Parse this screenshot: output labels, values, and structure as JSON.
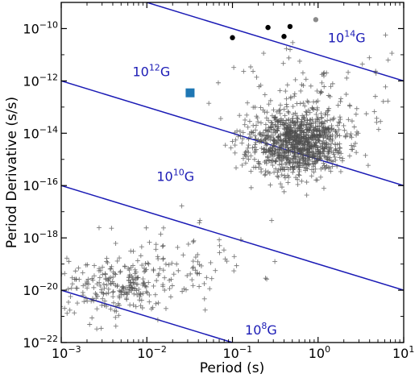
{
  "chart_data": {
    "type": "scatter",
    "xlabel": "Period (s)",
    "ylabel": "Period Derivative (s/s)",
    "xscale": "log",
    "yscale": "log",
    "xlim": [
      0.001,
      10
    ],
    "ylim": [
      1e-22,
      1e-09
    ],
    "grid": false,
    "legend": "none",
    "x_ticks": [
      {
        "value": 0.001,
        "base": "10",
        "exp": "−3"
      },
      {
        "value": 0.01,
        "base": "10",
        "exp": "−2"
      },
      {
        "value": 0.1,
        "base": "10",
        "exp": "−1"
      },
      {
        "value": 1,
        "base": "10",
        "exp": "0"
      },
      {
        "value": 10,
        "base": "10",
        "exp": "1"
      }
    ],
    "y_ticks": [
      {
        "value": 1e-22,
        "base": "10",
        "exp": "−22"
      },
      {
        "value": 1e-20,
        "base": "10",
        "exp": "−20"
      },
      {
        "value": 1e-18,
        "base": "10",
        "exp": "−18"
      },
      {
        "value": 1e-16,
        "base": "10",
        "exp": "−16"
      },
      {
        "value": 1e-14,
        "base": "10",
        "exp": "−14"
      },
      {
        "value": 1e-12,
        "base": "10",
        "exp": "−12"
      },
      {
        "value": 1e-10,
        "base": "10",
        "exp": "−10"
      }
    ],
    "field_lines": [
      {
        "label_base": "10",
        "label_exp": "8",
        "label_suffix": "G",
        "points": [
          [
            0.001,
            1e-20
          ],
          [
            10,
            1e-24
          ]
        ],
        "label_at": [
          0.14,
          2e-22
        ],
        "color": "#1a1ab5"
      },
      {
        "label_base": "10",
        "label_exp": "10",
        "label_suffix": "G",
        "points": [
          [
            0.001,
            1e-16
          ],
          [
            10,
            1e-20
          ]
        ],
        "label_at": [
          0.013,
          1.5e-16
        ],
        "color": "#1a1ab5"
      },
      {
        "label_base": "10",
        "label_exp": "12",
        "label_suffix": "G",
        "points": [
          [
            0.001,
            1e-12
          ],
          [
            10,
            1e-16
          ]
        ],
        "label_at": [
          0.0068,
          1.5e-12
        ],
        "color": "#1a1ab5"
      },
      {
        "label_base": "10",
        "label_exp": "14",
        "label_suffix": "G",
        "points": [
          [
            0.001,
            1e-08
          ],
          [
            10,
            1e-12
          ]
        ],
        "label_at": [
          1.3,
          3e-11
        ],
        "color": "#1a1ab5"
      }
    ],
    "pulsar_clusters": [
      {
        "name": "",
        "n": 230,
        "center": [
          0.0045,
          1.2e-20
        ],
        "spread": [
          0.33,
          0.55
        ],
        "seed": 7
      },
      {
        "name": "",
        "n": 90,
        "center": [
          0.02,
          1.5e-19
        ],
        "spread": [
          0.5,
          0.75
        ],
        "seed": 11
      },
      {
        "name": "",
        "n": 1000,
        "center": [
          0.55,
          4e-15
        ],
        "spread": [
          0.28,
          0.62
        ],
        "seed": 23
      },
      {
        "name": "",
        "n": 110,
        "center": [
          0.8,
          2e-13
        ],
        "spread": [
          0.55,
          1.0
        ],
        "seed": 31
      }
    ],
    "special_points": [
      {
        "x": 0.1,
        "y": 4.5e-11,
        "marker": "circle",
        "color": "#000000"
      },
      {
        "x": 0.26,
        "y": 1.1e-10,
        "marker": "circle",
        "color": "#000000"
      },
      {
        "x": 0.4,
        "y": 5e-11,
        "marker": "circle",
        "color": "#000000"
      },
      {
        "x": 0.47,
        "y": 1.2e-10,
        "marker": "circle",
        "color": "#000000"
      },
      {
        "x": 0.94,
        "y": 2.2e-10,
        "marker": "circle",
        "color": "#8a8a8a"
      },
      {
        "x": 0.032,
        "y": 3.5e-13,
        "marker": "square",
        "color": "#1f77b4"
      }
    ]
  }
}
